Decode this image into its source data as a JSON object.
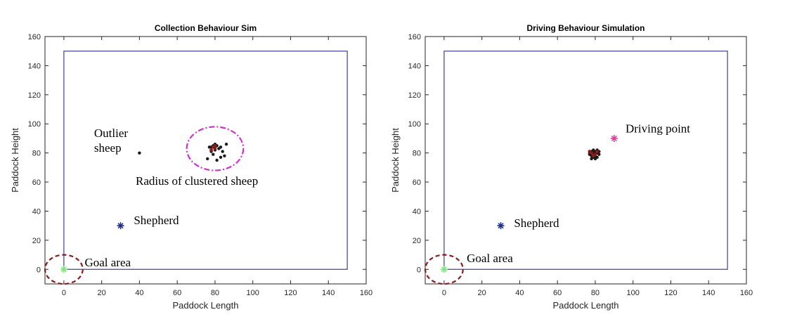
{
  "chart_data": [
    {
      "type": "scatter",
      "title": "Collection Behaviour Sim",
      "xlabel": "Paddock Length",
      "ylabel": "Paddock Height",
      "xlim": [
        -10,
        160
      ],
      "ylim": [
        -10,
        160
      ],
      "xticks": [
        0,
        20,
        40,
        60,
        80,
        100,
        120,
        140,
        160
      ],
      "yticks": [
        0,
        20,
        40,
        60,
        80,
        100,
        120,
        140,
        160
      ],
      "grid": false,
      "paddock": {
        "x": [
          0,
          150
        ],
        "y": [
          0,
          150
        ],
        "color": "#5a5aa0"
      },
      "sheep": {
        "color": "#1a1a1a",
        "points": [
          [
            40,
            80
          ],
          [
            77,
            84
          ],
          [
            79,
            85
          ],
          [
            80,
            82
          ],
          [
            78,
            81
          ],
          [
            81,
            85
          ],
          [
            80,
            86
          ],
          [
            82,
            83
          ],
          [
            79,
            79
          ],
          [
            83,
            84
          ],
          [
            86,
            86
          ],
          [
            84,
            81
          ],
          [
            85,
            78
          ],
          [
            83,
            77
          ],
          [
            81,
            75
          ],
          [
            76,
            76
          ],
          [
            80,
            84
          ],
          [
            78,
            84
          ]
        ],
        "highlight_color": "#8b1a1a",
        "highlight_points": [
          [
            79,
            84
          ],
          [
            80,
            83
          ],
          [
            78,
            82
          ],
          [
            80,
            85
          ]
        ]
      },
      "shepherd": {
        "x": 30,
        "y": 30,
        "color": "#1f2f8f"
      },
      "goal": {
        "x": 0,
        "y": 0,
        "color": "#7de87d"
      },
      "goal_circle": {
        "cx": 0,
        "cy": 0,
        "rx": 10,
        "ry": 10,
        "color": "#8b1a1a"
      },
      "cluster_circle": {
        "cx": 80,
        "cy": 83,
        "rx": 15,
        "ry": 15,
        "color": "#cc33cc"
      },
      "annotations": [
        {
          "lines": [
            "Outlier",
            "sheep"
          ],
          "x": 16,
          "y": 91
        },
        {
          "lines": [
            "Radius of clustered sheep"
          ],
          "x": 38,
          "y": 58
        },
        {
          "lines": [
            "Shepherd"
          ],
          "x": 37,
          "y": 31
        },
        {
          "lines": [
            "Goal area"
          ],
          "x": 11,
          "y": 2
        }
      ]
    },
    {
      "type": "scatter",
      "title": "Driving Behaviour Simulation",
      "xlabel": "Paddock Length",
      "ylabel": "Paddock Height",
      "xlim": [
        -10,
        160
      ],
      "ylim": [
        -10,
        160
      ],
      "xticks": [
        0,
        20,
        40,
        60,
        80,
        100,
        120,
        140,
        160
      ],
      "yticks": [
        0,
        20,
        40,
        60,
        80,
        100,
        120,
        140,
        160
      ],
      "grid": false,
      "paddock": {
        "x": [
          0,
          150
        ],
        "y": [
          0,
          150
        ],
        "color": "#5a5aa0"
      },
      "sheep": {
        "color": "#1a1a1a",
        "points": [
          [
            77,
            80
          ],
          [
            78,
            81
          ],
          [
            79,
            82
          ],
          [
            80,
            81
          ],
          [
            81,
            80
          ],
          [
            82,
            79
          ],
          [
            80,
            78
          ],
          [
            78,
            78
          ],
          [
            79,
            77
          ],
          [
            81,
            77
          ],
          [
            77,
            79
          ],
          [
            79,
            80
          ],
          [
            80,
            80
          ],
          [
            82,
            81
          ],
          [
            81,
            82
          ],
          [
            78,
            76
          ],
          [
            80,
            76
          ]
        ],
        "highlight_color": "#8b1a1a",
        "highlight_points": [
          [
            78,
            80
          ],
          [
            80,
            79
          ],
          [
            81,
            81
          ],
          [
            79,
            78
          ],
          [
            77,
            81
          ]
        ]
      },
      "shepherd": {
        "x": 30,
        "y": 30,
        "color": "#1f2f8f"
      },
      "goal": {
        "x": 0,
        "y": 0,
        "color": "#7de87d"
      },
      "driving_point": {
        "x": 90,
        "y": 90,
        "color": "#e0409a"
      },
      "goal_circle": {
        "cx": 0,
        "cy": 0,
        "rx": 10,
        "ry": 10,
        "color": "#8b1a1a"
      },
      "annotations": [
        {
          "lines": [
            "Driving point"
          ],
          "x": 96,
          "y": 94
        },
        {
          "lines": [
            "Shepherd"
          ],
          "x": 37,
          "y": 29
        },
        {
          "lines": [
            "Goal area"
          ],
          "x": 12,
          "y": 5
        }
      ]
    }
  ]
}
